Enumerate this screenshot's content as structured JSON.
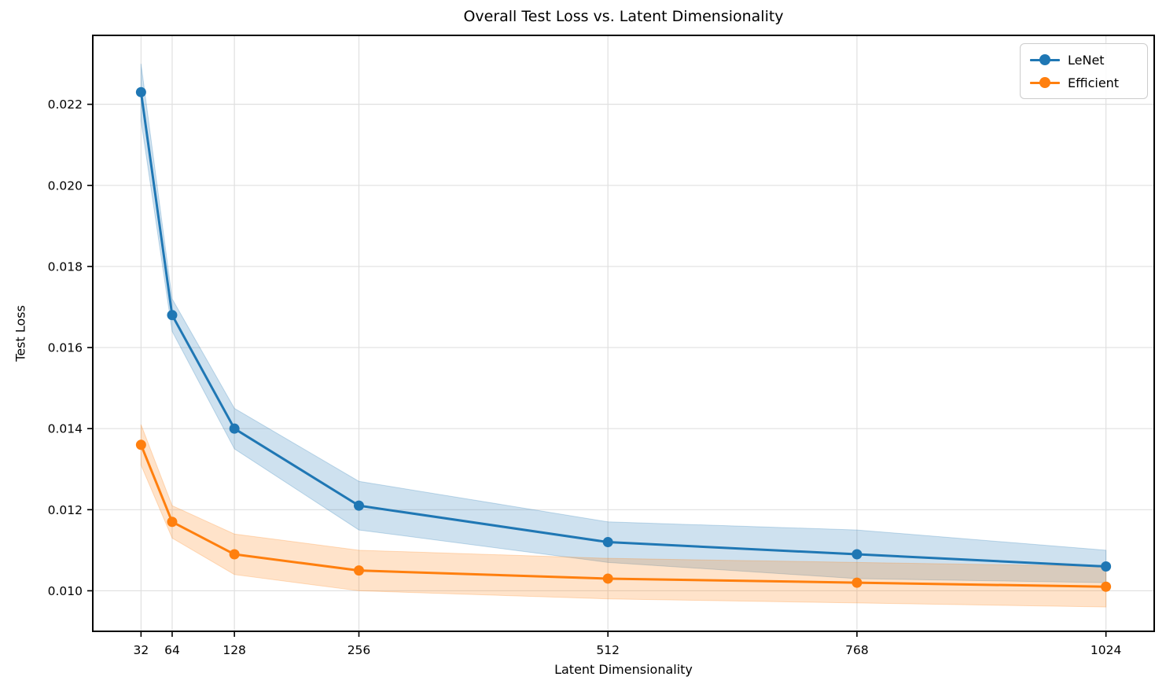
{
  "chart_data": {
    "type": "line",
    "title": "Overall Test Loss vs. Latent Dimensionality",
    "xlabel": "Latent Dimensionality",
    "ylabel": "Test Loss",
    "x": [
      32,
      64,
      128,
      256,
      512,
      768,
      1024
    ],
    "series": [
      {
        "name": "LeNet",
        "color": "#1f77b4",
        "values": [
          0.0223,
          0.0168,
          0.014,
          0.0121,
          0.0112,
          0.0109,
          0.0106
        ],
        "band_halfwidth": [
          0.0007,
          0.0004,
          0.0005,
          0.0006,
          0.0005,
          0.0006,
          0.0004
        ]
      },
      {
        "name": "Efficient",
        "color": "#ff7f0e",
        "values": [
          0.0136,
          0.0117,
          0.0109,
          0.0105,
          0.0103,
          0.0102,
          0.0101
        ],
        "band_halfwidth": [
          0.0005,
          0.0004,
          0.0005,
          0.0005,
          0.0005,
          0.0005,
          0.0005
        ]
      }
    ],
    "xticks": {
      "values": [
        32,
        64,
        128,
        256,
        512,
        768,
        1024
      ],
      "labels": [
        "32",
        "64",
        "128",
        "256",
        "512",
        "768",
        "1024"
      ]
    },
    "yticks": {
      "values": [
        0.01,
        0.012,
        0.014,
        0.016,
        0.018,
        0.02,
        0.022
      ],
      "labels": [
        "0.010",
        "0.012",
        "0.014",
        "0.016",
        "0.018",
        "0.020",
        "0.022"
      ]
    },
    "xlim": [
      -17.6,
      1073.6
    ],
    "ylim": [
      0.009,
      0.0237
    ],
    "grid": true,
    "grid_color": "#e0e0e0",
    "spine_color": "#000000",
    "band_opacity": 0.22,
    "legend": {
      "position": "top-right",
      "entries": [
        "LeNet",
        "Efficient"
      ]
    }
  }
}
